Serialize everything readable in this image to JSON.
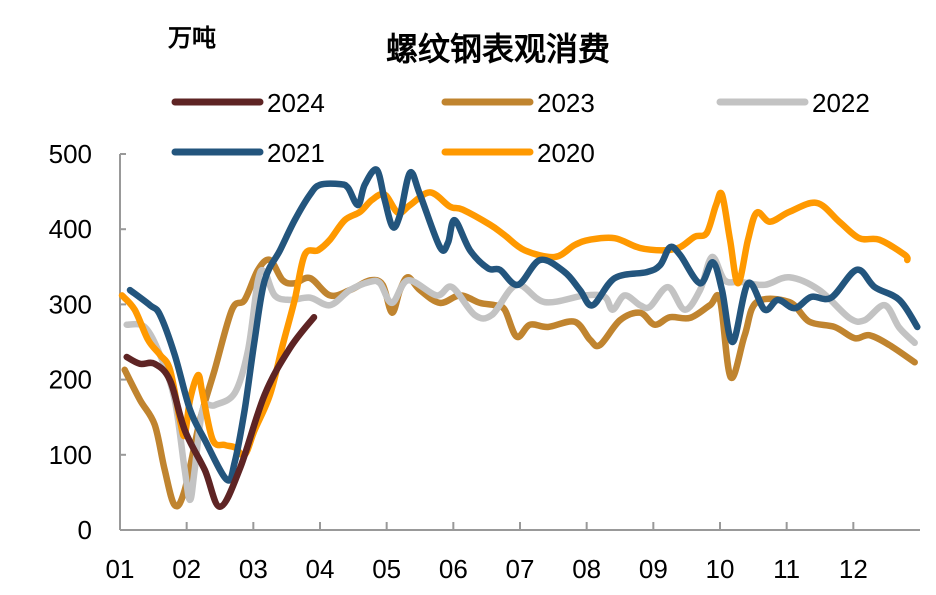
{
  "chart_data": {
    "type": "line",
    "title": "螺纹钢表观消费",
    "ylabel": "万吨",
    "xlabel": "",
    "ylim": [
      0,
      500
    ],
    "xlim": [
      1,
      13
    ],
    "yticks": [
      "0",
      "100",
      "200",
      "300",
      "400",
      "500"
    ],
    "xticks": [
      "01",
      "02",
      "03",
      "04",
      "05",
      "06",
      "07",
      "08",
      "09",
      "10",
      "11",
      "12"
    ],
    "grid": false,
    "legend": "top",
    "series": [
      {
        "name": "2024",
        "color": "#5E2424",
        "points": [
          [
            1.1,
            230
          ],
          [
            1.3,
            221
          ],
          [
            1.52,
            221
          ],
          [
            1.75,
            199
          ],
          [
            1.97,
            133
          ],
          [
            2.27,
            80
          ],
          [
            2.5,
            31
          ],
          [
            2.8,
            82
          ],
          [
            3.17,
            180
          ],
          [
            3.55,
            242
          ],
          [
            3.91,
            283
          ]
        ]
      },
      {
        "name": "2023",
        "color": "#C0842F",
        "points": [
          [
            1.07,
            213
          ],
          [
            1.3,
            173
          ],
          [
            1.52,
            140
          ],
          [
            1.67,
            80
          ],
          [
            1.82,
            33
          ],
          [
            1.97,
            53
          ],
          [
            2.2,
            146
          ],
          [
            2.42,
            213
          ],
          [
            2.68,
            293
          ],
          [
            2.87,
            306
          ],
          [
            3.07,
            346
          ],
          [
            3.25,
            359
          ],
          [
            3.44,
            332
          ],
          [
            3.62,
            328
          ],
          [
            3.85,
            335
          ],
          [
            4.15,
            312
          ],
          [
            4.45,
            319
          ],
          [
            4.75,
            332
          ],
          [
            4.94,
            326
          ],
          [
            5.08,
            289
          ],
          [
            5.2,
            319
          ],
          [
            5.32,
            336
          ],
          [
            5.5,
            319
          ],
          [
            5.8,
            302
          ],
          [
            6.1,
            312
          ],
          [
            6.4,
            302
          ],
          [
            6.62,
            299
          ],
          [
            6.77,
            293
          ],
          [
            6.95,
            257
          ],
          [
            7.15,
            273
          ],
          [
            7.42,
            270
          ],
          [
            7.82,
            277
          ],
          [
            8.05,
            253
          ],
          [
            8.2,
            246
          ],
          [
            8.5,
            279
          ],
          [
            8.8,
            289
          ],
          [
            9.02,
            273
          ],
          [
            9.25,
            283
          ],
          [
            9.55,
            282
          ],
          [
            9.85,
            299
          ],
          [
            10.0,
            306
          ],
          [
            10.16,
            203
          ],
          [
            10.37,
            259
          ],
          [
            10.55,
            303
          ],
          [
            11.04,
            303
          ],
          [
            11.34,
            277
          ],
          [
            11.72,
            270
          ],
          [
            12.02,
            255
          ],
          [
            12.24,
            259
          ],
          [
            12.54,
            246
          ],
          [
            12.92,
            223
          ]
        ]
      },
      {
        "name": "2022",
        "color": "#C3C3C3",
        "points": [
          [
            1.1,
            273
          ],
          [
            1.37,
            270
          ],
          [
            1.6,
            233
          ],
          [
            1.82,
            173
          ],
          [
            1.97,
            80
          ],
          [
            2.05,
            40
          ],
          [
            2.12,
            80
          ],
          [
            2.24,
            160
          ],
          [
            2.42,
            166
          ],
          [
            2.72,
            182
          ],
          [
            2.92,
            239
          ],
          [
            3.07,
            332
          ],
          [
            3.17,
            343
          ],
          [
            3.32,
            312
          ],
          [
            3.55,
            306
          ],
          [
            3.85,
            309
          ],
          [
            4.15,
            299
          ],
          [
            4.45,
            319
          ],
          [
            4.75,
            330
          ],
          [
            4.9,
            328
          ],
          [
            5.08,
            302
          ],
          [
            5.32,
            332
          ],
          [
            5.75,
            312
          ],
          [
            5.98,
            323
          ],
          [
            6.32,
            286
          ],
          [
            6.58,
            286
          ],
          [
            6.95,
            326
          ],
          [
            7.37,
            303
          ],
          [
            7.97,
            312
          ],
          [
            8.27,
            310
          ],
          [
            8.39,
            293
          ],
          [
            8.57,
            312
          ],
          [
            8.8,
            299
          ],
          [
            8.95,
            297
          ],
          [
            9.22,
            323
          ],
          [
            9.47,
            293
          ],
          [
            9.7,
            319
          ],
          [
            9.88,
            363
          ],
          [
            10.07,
            332
          ],
          [
            10.3,
            330
          ],
          [
            10.67,
            326
          ],
          [
            11.04,
            336
          ],
          [
            11.49,
            319
          ],
          [
            11.94,
            282
          ],
          [
            12.17,
            279
          ],
          [
            12.47,
            299
          ],
          [
            12.69,
            269
          ],
          [
            12.92,
            249
          ]
        ]
      },
      {
        "name": "2021",
        "color": "#23557D",
        "points": [
          [
            1.15,
            319
          ],
          [
            1.45,
            299
          ],
          [
            1.6,
            286
          ],
          [
            1.82,
            233
          ],
          [
            2.05,
            160
          ],
          [
            2.27,
            120
          ],
          [
            2.6,
            67
          ],
          [
            2.72,
            90
          ],
          [
            2.87,
            160
          ],
          [
            3.02,
            253
          ],
          [
            3.17,
            332
          ],
          [
            3.4,
            372
          ],
          [
            3.62,
            412
          ],
          [
            3.85,
            446
          ],
          [
            4.0,
            459
          ],
          [
            4.3,
            460
          ],
          [
            4.42,
            455
          ],
          [
            4.57,
            432
          ],
          [
            4.67,
            459
          ],
          [
            4.85,
            479
          ],
          [
            4.97,
            439
          ],
          [
            5.09,
            403
          ],
          [
            5.2,
            419
          ],
          [
            5.35,
            475
          ],
          [
            5.5,
            446
          ],
          [
            5.8,
            376
          ],
          [
            5.92,
            382
          ],
          [
            6.02,
            412
          ],
          [
            6.25,
            372
          ],
          [
            6.52,
            348
          ],
          [
            6.7,
            346
          ],
          [
            6.97,
            326
          ],
          [
            7.3,
            359
          ],
          [
            7.67,
            343
          ],
          [
            7.9,
            319
          ],
          [
            8.09,
            299
          ],
          [
            8.42,
            335
          ],
          [
            8.9,
            343
          ],
          [
            9.1,
            352
          ],
          [
            9.25,
            376
          ],
          [
            9.4,
            366
          ],
          [
            9.7,
            328
          ],
          [
            9.89,
            356
          ],
          [
            10.03,
            319
          ],
          [
            10.19,
            250
          ],
          [
            10.42,
            328
          ],
          [
            10.67,
            293
          ],
          [
            10.87,
            306
          ],
          [
            11.12,
            295
          ],
          [
            11.37,
            310
          ],
          [
            11.67,
            309
          ],
          [
            12.05,
            346
          ],
          [
            12.32,
            323
          ],
          [
            12.69,
            306
          ],
          [
            12.96,
            270
          ]
        ]
      },
      {
        "name": "2020",
        "color": "#FF9900",
        "points": [
          [
            1.03,
            312
          ],
          [
            1.22,
            293
          ],
          [
            1.42,
            253
          ],
          [
            1.6,
            233
          ],
          [
            1.75,
            213
          ],
          [
            1.9,
            146
          ],
          [
            1.97,
            126
          ],
          [
            2.05,
            173
          ],
          [
            2.17,
            206
          ],
          [
            2.24,
            180
          ],
          [
            2.39,
            120
          ],
          [
            2.57,
            113
          ],
          [
            2.72,
            110
          ],
          [
            2.87,
            100
          ],
          [
            3.02,
            133
          ],
          [
            3.25,
            180
          ],
          [
            3.44,
            246
          ],
          [
            3.62,
            306
          ],
          [
            3.77,
            366
          ],
          [
            3.97,
            372
          ],
          [
            4.15,
            386
          ],
          [
            4.37,
            412
          ],
          [
            4.6,
            423
          ],
          [
            4.78,
            439
          ],
          [
            4.97,
            446
          ],
          [
            5.17,
            422
          ],
          [
            5.35,
            432
          ],
          [
            5.65,
            449
          ],
          [
            5.95,
            430
          ],
          [
            6.14,
            426
          ],
          [
            6.55,
            406
          ],
          [
            6.77,
            392
          ],
          [
            7.07,
            372
          ],
          [
            7.52,
            363
          ],
          [
            7.82,
            379
          ],
          [
            8.05,
            386
          ],
          [
            8.42,
            388
          ],
          [
            8.8,
            375
          ],
          [
            9.17,
            372
          ],
          [
            9.4,
            376
          ],
          [
            9.62,
            390
          ],
          [
            9.8,
            395
          ],
          [
            9.94,
            432
          ],
          [
            10.03,
            446
          ],
          [
            10.15,
            386
          ],
          [
            10.27,
            328
          ],
          [
            10.42,
            386
          ],
          [
            10.55,
            422
          ],
          [
            10.75,
            410
          ],
          [
            11.04,
            423
          ],
          [
            11.45,
            435
          ],
          [
            11.79,
            410
          ],
          [
            12.09,
            388
          ],
          [
            12.39,
            386
          ],
          [
            12.77,
            366
          ],
          [
            12.81,
            359
          ]
        ]
      }
    ]
  }
}
